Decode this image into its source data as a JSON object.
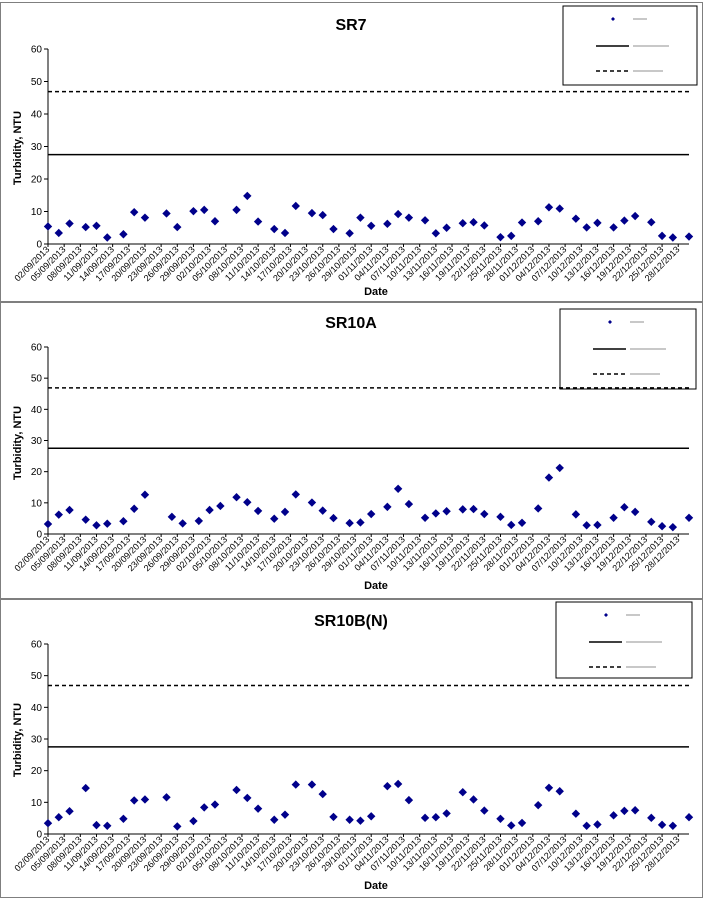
{
  "chart_data": [
    {
      "type": "scatter",
      "title": "SR7",
      "xlabel": "Date",
      "ylabel": "Turbidity, NTU",
      "ylim": [
        0,
        60
      ],
      "yticks": [
        0,
        10,
        20,
        30,
        40,
        50,
        60
      ],
      "x_range": [
        "02/09/2013",
        "30/12/2013"
      ],
      "x_tick_labels": [
        "02/09/2013",
        "05/09/2013",
        "08/09/2013",
        "11/09/2013",
        "14/09/2013",
        "17/09/2013",
        "20/09/2013",
        "23/09/2013",
        "26/09/2013",
        "29/09/2013",
        "02/10/2013",
        "05/10/2013",
        "08/10/2013",
        "11/10/2013",
        "14/10/2013",
        "17/10/2013",
        "20/10/2013",
        "23/10/2013",
        "26/10/2013",
        "29/10/2013",
        "01/11/2013",
        "04/11/2013",
        "07/11/2013",
        "10/11/2013",
        "13/11/2013",
        "16/11/2013",
        "19/11/2013",
        "22/11/2013",
        "25/11/2013",
        "28/11/2013",
        "01/12/2013",
        "04/12/2013",
        "07/12/2013",
        "10/12/2013",
        "13/12/2013",
        "16/12/2013",
        "19/12/2013",
        "22/12/2013",
        "25/12/2013",
        "28/12/2013"
      ],
      "grid": false,
      "legend_position": "top-right",
      "series": [
        {
          "kind": "points",
          "marker": "diamond",
          "color": "#00008b",
          "x": [
            "02/09/2013",
            "04/09/2013",
            "06/09/2013",
            "09/09/2013",
            "11/09/2013",
            "13/09/2013",
            "16/09/2013",
            "18/09/2013",
            "20/09/2013",
            "24/09/2013",
            "26/09/2013",
            "29/09/2013",
            "01/10/2013",
            "03/10/2013",
            "07/10/2013",
            "09/10/2013",
            "11/10/2013",
            "14/10/2013",
            "16/10/2013",
            "18/10/2013",
            "21/10/2013",
            "23/10/2013",
            "25/10/2013",
            "28/10/2013",
            "30/10/2013",
            "01/11/2013",
            "04/11/2013",
            "06/11/2013",
            "08/11/2013",
            "11/11/2013",
            "13/11/2013",
            "15/11/2013",
            "18/11/2013",
            "20/11/2013",
            "22/11/2013",
            "25/11/2013",
            "27/11/2013",
            "29/11/2013",
            "02/12/2013",
            "04/12/2013",
            "06/12/2013",
            "09/12/2013",
            "11/12/2013",
            "13/12/2013",
            "16/12/2013",
            "18/12/2013",
            "20/12/2013",
            "23/12/2013",
            "25/12/2013",
            "27/12/2013",
            "30/12/2013"
          ],
          "y": [
            5.4,
            3.4,
            6.3,
            5.2,
            5.6,
            2.0,
            3.0,
            9.8,
            8.1,
            9.4,
            5.2,
            10.1,
            10.5,
            7.0,
            10.5,
            14.8,
            6.9,
            4.6,
            3.4,
            11.7,
            9.5,
            8.9,
            4.6,
            3.3,
            8.1,
            5.6,
            6.2,
            9.2,
            8.1,
            7.3,
            3.3,
            5.0,
            6.4,
            6.7,
            5.7,
            2.1,
            2.5,
            6.6,
            7.0,
            11.3,
            10.9,
            7.8,
            5.1,
            6.5,
            5.1,
            7.2,
            8.6,
            6.7,
            2.5,
            2.0,
            2.3
          ]
        },
        {
          "kind": "hline",
          "style": "solid",
          "color": "#000000",
          "y": 27.5
        },
        {
          "kind": "hline",
          "style": "dashed",
          "color": "#000000",
          "y": 46.9
        }
      ]
    },
    {
      "type": "scatter",
      "title": "SR10A",
      "xlabel": "Date",
      "ylabel": "Turbidity, NTU",
      "ylim": [
        0,
        60
      ],
      "yticks": [
        0,
        10,
        20,
        30,
        40,
        50,
        60
      ],
      "x_range": [
        "02/09/2013",
        "30/12/2013"
      ],
      "x_tick_labels": [
        "02/09/2013",
        "05/09/2013",
        "08/09/2013",
        "11/09/2013",
        "14/09/2013",
        "17/09/2013",
        "20/09/2013",
        "23/09/2013",
        "26/09/2013",
        "29/09/2013",
        "02/10/2013",
        "05/10/2013",
        "08/10/2013",
        "11/10/2013",
        "14/10/2013",
        "17/10/2013",
        "20/10/2013",
        "23/10/2013",
        "26/10/2013",
        "29/10/2013",
        "01/11/2013",
        "04/11/2013",
        "07/11/2013",
        "10/11/2013",
        "13/11/2013",
        "16/11/2013",
        "19/11/2013",
        "22/11/2013",
        "25/11/2013",
        "28/11/2013",
        "01/12/2013",
        "04/12/2013",
        "07/12/2013",
        "10/12/2013",
        "13/12/2013",
        "16/12/2013",
        "19/12/2013",
        "22/12/2013",
        "25/12/2013",
        "28/12/2013"
      ],
      "grid": false,
      "legend_position": "top-right",
      "series": [
        {
          "kind": "points",
          "marker": "diamond",
          "color": "#00008b",
          "x": [
            "02/09/2013",
            "04/09/2013",
            "06/09/2013",
            "09/09/2013",
            "11/09/2013",
            "13/09/2013",
            "16/09/2013",
            "18/09/2013",
            "20/09/2013",
            "25/09/2013",
            "27/09/2013",
            "30/09/2013",
            "02/10/2013",
            "04/10/2013",
            "07/10/2013",
            "09/10/2013",
            "11/10/2013",
            "14/10/2013",
            "16/10/2013",
            "18/10/2013",
            "21/10/2013",
            "23/10/2013",
            "25/10/2013",
            "28/10/2013",
            "30/10/2013",
            "01/11/2013",
            "04/11/2013",
            "06/11/2013",
            "08/11/2013",
            "11/11/2013",
            "13/11/2013",
            "15/11/2013",
            "18/11/2013",
            "20/11/2013",
            "22/11/2013",
            "25/11/2013",
            "27/11/2013",
            "29/11/2013",
            "02/12/2013",
            "04/12/2013",
            "06/12/2013",
            "09/12/2013",
            "11/12/2013",
            "13/12/2013",
            "16/12/2013",
            "18/12/2013",
            "20/12/2013",
            "23/12/2013",
            "25/12/2013",
            "27/12/2013",
            "30/12/2013"
          ],
          "y": [
            3.2,
            6.2,
            7.7,
            4.6,
            2.8,
            3.3,
            4.1,
            8.1,
            12.6,
            5.5,
            3.4,
            4.2,
            7.7,
            9.0,
            11.8,
            10.2,
            7.4,
            4.9,
            7.1,
            12.7,
            10.1,
            7.5,
            5.1,
            3.5,
            3.7,
            6.4,
            8.7,
            14.5,
            9.6,
            5.2,
            6.6,
            7.3,
            7.9,
            8.0,
            6.4,
            5.5,
            2.9,
            3.6,
            8.2,
            18.1,
            21.2,
            6.3,
            2.8,
            2.9,
            5.2,
            8.6,
            7.1,
            3.9,
            2.5,
            2.2,
            5.2
          ]
        },
        {
          "kind": "hline",
          "style": "solid",
          "color": "#000000",
          "y": 27.5
        },
        {
          "kind": "hline",
          "style": "dashed",
          "color": "#000000",
          "y": 46.9
        }
      ]
    },
    {
      "type": "scatter",
      "title": "SR10B(N)",
      "xlabel": "Date",
      "ylabel": "Turbidity, NTU",
      "ylim": [
        0,
        60
      ],
      "yticks": [
        0,
        10,
        20,
        30,
        40,
        50,
        60
      ],
      "x_range": [
        "02/09/2013",
        "30/12/2013"
      ],
      "x_tick_labels": [
        "02/09/2013",
        "05/09/2013",
        "08/09/2013",
        "11/09/2013",
        "14/09/2013",
        "17/09/2013",
        "20/09/2013",
        "23/09/2013",
        "26/09/2013",
        "29/09/2013",
        "02/10/2013",
        "05/10/2013",
        "08/10/2013",
        "11/10/2013",
        "14/10/2013",
        "17/10/2013",
        "20/10/2013",
        "23/10/2013",
        "26/10/2013",
        "29/10/2013",
        "01/11/2013",
        "04/11/2013",
        "07/11/2013",
        "10/11/2013",
        "13/11/2013",
        "16/11/2013",
        "19/11/2013",
        "22/11/2013",
        "25/11/2013",
        "28/11/2013",
        "01/12/2013",
        "04/12/2013",
        "07/12/2013",
        "10/12/2013",
        "13/12/2013",
        "16/12/2013",
        "19/12/2013",
        "22/12/2013",
        "25/12/2013",
        "28/12/2013"
      ],
      "grid": false,
      "legend_position": "top-right",
      "series": [
        {
          "kind": "points",
          "marker": "diamond",
          "color": "#00008b",
          "x": [
            "02/09/2013",
            "04/09/2013",
            "06/09/2013",
            "09/09/2013",
            "11/09/2013",
            "13/09/2013",
            "16/09/2013",
            "18/09/2013",
            "20/09/2013",
            "24/09/2013",
            "26/09/2013",
            "29/09/2013",
            "01/10/2013",
            "03/10/2013",
            "07/10/2013",
            "09/10/2013",
            "11/10/2013",
            "14/10/2013",
            "16/10/2013",
            "18/10/2013",
            "21/10/2013",
            "23/10/2013",
            "25/10/2013",
            "28/10/2013",
            "30/10/2013",
            "01/11/2013",
            "04/11/2013",
            "06/11/2013",
            "08/11/2013",
            "11/11/2013",
            "13/11/2013",
            "15/11/2013",
            "18/11/2013",
            "20/11/2013",
            "22/11/2013",
            "25/11/2013",
            "27/11/2013",
            "29/11/2013",
            "02/12/2013",
            "04/12/2013",
            "06/12/2013",
            "09/12/2013",
            "11/12/2013",
            "13/12/2013",
            "16/12/2013",
            "18/12/2013",
            "20/12/2013",
            "23/12/2013",
            "25/12/2013",
            "27/12/2013",
            "30/12/2013"
          ],
          "y": [
            3.4,
            5.3,
            7.2,
            14.5,
            2.8,
            2.6,
            4.8,
            10.6,
            10.9,
            11.6,
            2.4,
            4.1,
            8.4,
            9.3,
            13.9,
            11.4,
            8.0,
            4.5,
            6.1,
            15.6,
            15.6,
            12.6,
            5.4,
            4.5,
            4.2,
            5.6,
            15.1,
            15.8,
            10.7,
            5.1,
            5.3,
            6.5,
            13.2,
            10.9,
            7.4,
            4.8,
            2.7,
            3.5,
            9.1,
            14.6,
            13.5,
            6.4,
            2.6,
            3.0,
            5.9,
            7.3,
            7.5,
            5.1,
            2.9,
            2.6,
            5.3
          ]
        },
        {
          "kind": "hline",
          "style": "solid",
          "color": "#000000",
          "y": 27.5
        },
        {
          "kind": "hline",
          "style": "dashed",
          "color": "#000000",
          "y": 46.9
        }
      ]
    }
  ]
}
